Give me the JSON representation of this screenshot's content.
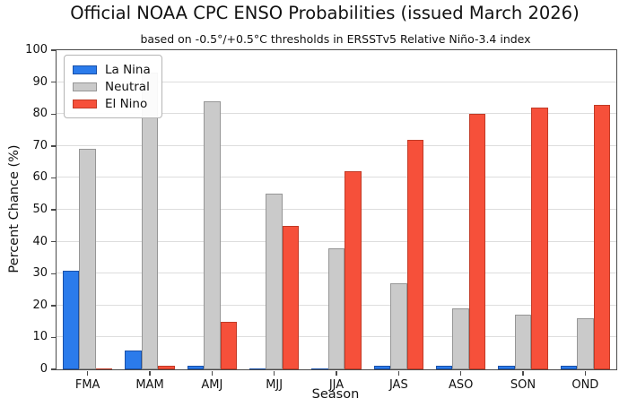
{
  "chart_data": {
    "type": "bar",
    "title": "Official NOAA CPC ENSO Probabilities (issued March 2026)",
    "subtitle": "based on -0.5°/+0.5°C thresholds in ERSSTv5 Relative Niño-3.4 index",
    "xlabel": "Season",
    "ylabel": "Percent Chance (%)",
    "categories": [
      "FMA",
      "MAM",
      "AMJ",
      "MJJ",
      "JJA",
      "JAS",
      "ASO",
      "SON",
      "OND"
    ],
    "series": [
      {
        "name": "La Nina",
        "color": "#2B7BEB",
        "edge_color": "#1950A8",
        "values": [
          31,
          6,
          1,
          0,
          0,
          1,
          1,
          1,
          1
        ]
      },
      {
        "name": "Neutral",
        "color": "#CACACA",
        "edge_color": "#969696",
        "values": [
          69,
          93,
          84,
          55,
          38,
          27,
          19,
          17,
          16
        ]
      },
      {
        "name": "El Nino",
        "color": "#F6503A",
        "edge_color": "#C13A26",
        "values": [
          0,
          1,
          15,
          45,
          62,
          72,
          80,
          82,
          83
        ]
      }
    ],
    "ylim": [
      0,
      100
    ],
    "yticks": [
      0,
      10,
      20,
      30,
      40,
      50,
      60,
      70,
      80,
      90,
      100
    ],
    "grid": true,
    "legend_position": "upper-left",
    "background_color": "#ffffff",
    "gridline_color": "#dddddd",
    "spine_color": "#4a4a4a"
  }
}
